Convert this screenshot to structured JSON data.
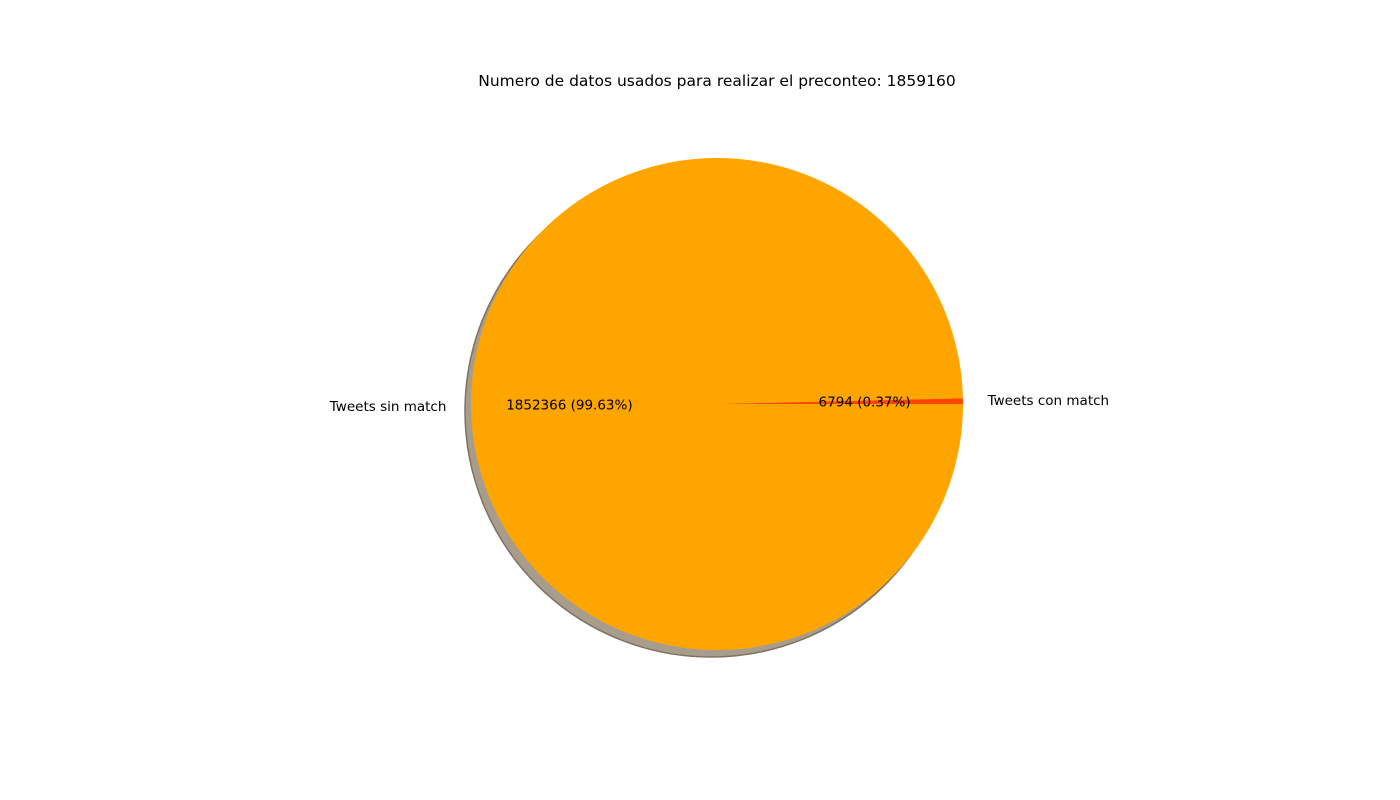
{
  "chart_data": {
    "type": "pie",
    "title": "Numero de datos usados para realizar el preconteo: 1859160",
    "slices": [
      {
        "label": "Tweets con match",
        "value": 6794,
        "percent": 0.37,
        "autopct": "6794 (0.37%)",
        "color": "#ff4500"
      },
      {
        "label": "Tweets sin match",
        "value": 1852366,
        "percent": 99.63,
        "autopct": "1852366 (99.63%)",
        "color": "#ffa500"
      }
    ],
    "shadow": true,
    "start_angle_deg": 0,
    "legend": "none"
  }
}
